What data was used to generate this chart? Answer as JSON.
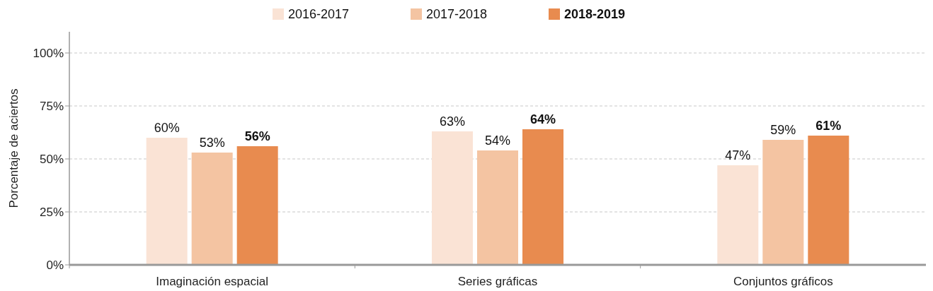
{
  "chart_data": {
    "type": "bar",
    "ylabel": "Porcentaje de aciertos",
    "categories": [
      "Imaginación espacial",
      "Series gráficas",
      "Conjuntos gráficos"
    ],
    "series": [
      {
        "name": "2016-2017",
        "color": "#fae3d5",
        "values": [
          60,
          63,
          47
        ]
      },
      {
        "name": "2017-2018",
        "color": "#f4c4a2",
        "values": [
          53,
          54,
          59
        ]
      },
      {
        "name": "2018-2019",
        "color": "#e88b4f",
        "values": [
          56,
          64,
          61
        ]
      }
    ],
    "value_labels": [
      [
        "60%",
        "63%",
        "47%"
      ],
      [
        "53%",
        "54%",
        "59%"
      ],
      [
        "56%",
        "64%",
        "61%"
      ]
    ],
    "ylim": [
      0,
      110
    ],
    "yticks": [
      {
        "value": 0,
        "label": "0%"
      },
      {
        "value": 25,
        "label": "25%"
      },
      {
        "value": 50,
        "label": "50%"
      },
      {
        "value": 75,
        "label": "75%"
      },
      {
        "value": 100,
        "label": "100%"
      }
    ],
    "grid": "y",
    "legend": "top"
  }
}
